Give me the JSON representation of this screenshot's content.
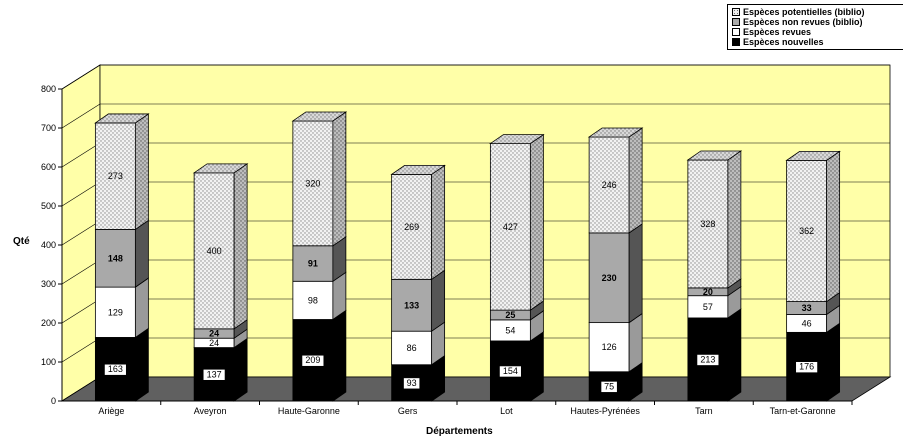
{
  "colors": {
    "wall": "#ffffa8",
    "floor": "#606060",
    "nouvelles": "#000000",
    "revues": "#ffffff",
    "non_revues": "#a9a9a9",
    "potentielles": "#ececec",
    "dots": "#8a8a8a"
  },
  "legend": {
    "items": [
      {
        "label": "Espèces potentielles (biblio)",
        "key": "potentielles"
      },
      {
        "label": "Espèces non revues (biblio)",
        "key": "non_revues"
      },
      {
        "label": "Espèces revues",
        "key": "revues"
      },
      {
        "label": "Espèces nouvelles",
        "key": "nouvelles"
      }
    ]
  },
  "chart_data": {
    "type": "bar",
    "stacked": true,
    "three_d": true,
    "xlabel": "Départements",
    "ylabel": "Qté",
    "ylim": [
      0,
      800
    ],
    "yticks": [
      0,
      100,
      200,
      300,
      400,
      500,
      600,
      700,
      800
    ],
    "categories": [
      "Ariège",
      "Aveyron",
      "Haute-Garonne",
      "Gers",
      "Lot",
      "Hautes-Pyrénées",
      "Tarn",
      "Tarn-et-Garonne"
    ],
    "series": [
      {
        "name": "Espèces nouvelles",
        "key": "nouvelles",
        "values": [
          163,
          137,
          209,
          93,
          154,
          75,
          213,
          176
        ]
      },
      {
        "name": "Espèces revues",
        "key": "revues",
        "values": [
          129,
          24,
          98,
          86,
          54,
          126,
          57,
          46
        ]
      },
      {
        "name": "Espèces non revues (biblio)",
        "key": "non_revues",
        "values": [
          148,
          24,
          91,
          133,
          25,
          230,
          20,
          33
        ]
      },
      {
        "name": "Espèces potentielles (biblio)",
        "key": "potentielles",
        "values": [
          273,
          400,
          320,
          269,
          427,
          246,
          328,
          362
        ]
      }
    ],
    "legend_position": "top-right"
  }
}
